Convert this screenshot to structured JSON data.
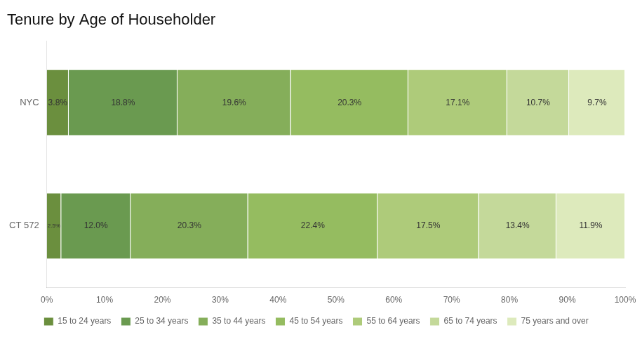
{
  "chart_data": {
    "type": "bar",
    "title": "Tenure by Age of Householder",
    "orientation": "horizontal",
    "stacked": true,
    "data_labels": true,
    "grid": false,
    "legend": "bottom",
    "categories": [
      "CT 572",
      "NYC"
    ],
    "series": [
      {
        "name": "15 to 24 years",
        "color": "#6b8f3e",
        "values": [
          2.5,
          3.8
        ],
        "value_labels": [
          "2.5%",
          "3.8%"
        ]
      },
      {
        "name": "25 to 34 years",
        "color": "#6a9a50",
        "values": [
          12.0,
          18.8
        ],
        "value_labels": [
          "12.0%",
          "18.8%"
        ]
      },
      {
        "name": "35 to 44 years",
        "color": "#85ae5a",
        "values": [
          20.3,
          19.6
        ],
        "value_labels": [
          "20.3%",
          "19.6%"
        ]
      },
      {
        "name": "45 to 54 years",
        "color": "#95bc60",
        "values": [
          22.4,
          20.3
        ],
        "value_labels": [
          "22.4%",
          "20.3%"
        ]
      },
      {
        "name": "55 to 64 years",
        "color": "#aecb7a",
        "values": [
          17.5,
          17.1
        ],
        "value_labels": [
          "17.5%",
          "17.1%"
        ]
      },
      {
        "name": "65 to 74 years",
        "color": "#c4d99a",
        "values": [
          13.4,
          10.7
        ],
        "value_labels": [
          "13.4%",
          "10.7%"
        ]
      },
      {
        "name": "75 years and over",
        "color": "#ddeabc",
        "values": [
          11.9,
          9.7
        ],
        "value_labels": [
          "11.9%",
          "9.7%"
        ]
      }
    ],
    "xlim": [
      0,
      100
    ],
    "xticks": [
      {
        "value": 0,
        "label": "0%"
      },
      {
        "value": 10,
        "label": "10%"
      },
      {
        "value": 20,
        "label": "20%"
      },
      {
        "value": 30,
        "label": "30%"
      },
      {
        "value": 40,
        "label": "40%"
      },
      {
        "value": 50,
        "label": "50%"
      },
      {
        "value": 60,
        "label": "60%"
      },
      {
        "value": 70,
        "label": "70%"
      },
      {
        "value": 80,
        "label": "80%"
      },
      {
        "value": 90,
        "label": "90%"
      },
      {
        "value": 100,
        "label": "100%"
      }
    ]
  }
}
